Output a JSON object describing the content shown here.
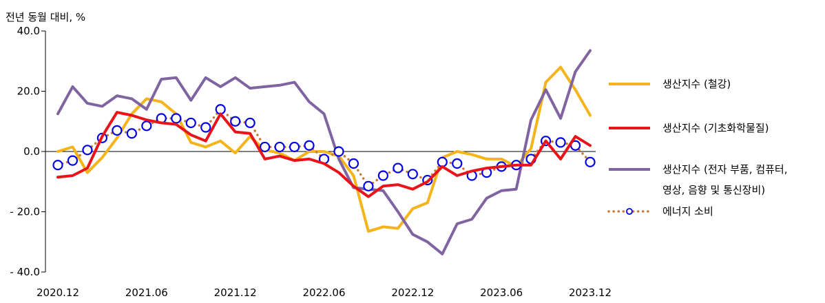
{
  "chart_data": {
    "type": "line",
    "unit_label": "전년 동월 대비, %",
    "ylim": [
      -40,
      40
    ],
    "y_ticks": [
      40,
      20,
      0,
      -20,
      -40
    ],
    "y_tick_labels": [
      "40.0",
      "20.0",
      "0.0",
      "- 20.0",
      "- 40.0"
    ],
    "x_tick_indices": [
      0,
      6,
      12,
      18,
      24,
      30,
      36
    ],
    "x_tick_labels": [
      "2020.12",
      "2021.06",
      "2021.12",
      "2022.06",
      "2022.12",
      "2023.06",
      "2023.12"
    ],
    "categories": [
      "2020.12",
      "2021.01",
      "2021.02",
      "2021.03",
      "2021.04",
      "2021.05",
      "2021.06",
      "2021.07",
      "2021.08",
      "2021.09",
      "2021.10",
      "2021.11",
      "2021.12",
      "2022.01",
      "2022.02",
      "2022.03",
      "2022.04",
      "2022.05",
      "2022.06",
      "2022.07",
      "2022.08",
      "2022.09",
      "2022.10",
      "2022.11",
      "2022.12",
      "2023.01",
      "2023.02",
      "2023.03",
      "2023.04",
      "2023.05",
      "2023.06",
      "2023.07",
      "2023.08",
      "2023.09",
      "2023.10",
      "2023.11",
      "2023.12"
    ],
    "series": [
      {
        "name": "생산지수 (철강)",
        "color": "#F4B41A",
        "style": "solid",
        "values": [
          0.0,
          1.5,
          -7.0,
          -2.0,
          4.5,
          12.5,
          17.5,
          16.5,
          12.5,
          3.0,
          1.5,
          3.5,
          -0.5,
          5.0,
          0.5,
          -0.5,
          -3.0,
          0.0,
          0.0,
          -1.5,
          -8.0,
          -26.5,
          -25.0,
          -25.5,
          -19.0,
          -17.0,
          -2.0,
          0.0,
          -1.0,
          -2.5,
          -2.5,
          -5.0,
          1.0,
          23.0,
          28.0,
          20.5,
          12.0
        ]
      },
      {
        "name": "생산지수 (기초화학물질)",
        "color": "#E8141A",
        "style": "solid",
        "values": [
          -8.5,
          -8.0,
          -5.5,
          5.0,
          13.0,
          12.0,
          10.5,
          9.5,
          9.0,
          5.5,
          3.5,
          12.5,
          6.5,
          6.0,
          -2.5,
          -1.5,
          -3.0,
          -2.5,
          -4.0,
          -7.0,
          -11.5,
          -15.0,
          -11.5,
          -11.0,
          -12.5,
          -10.0,
          -5.0,
          -8.0,
          -6.5,
          -5.5,
          -5.0,
          -4.5,
          -4.5,
          3.5,
          -2.5,
          5.0,
          2.0
        ]
      },
      {
        "name": "생산지수 (전자 부품, 컴퓨터, 영상, 음향 및 통신장비)",
        "color": "#8064A2",
        "style": "solid",
        "values": [
          12.5,
          21.5,
          16.0,
          15.0,
          18.5,
          17.5,
          14.0,
          24.0,
          24.5,
          17.0,
          24.5,
          21.5,
          24.5,
          21.0,
          21.5,
          22.0,
          23.0,
          16.5,
          12.5,
          -2.5,
          -12.0,
          -12.5,
          -13.0,
          -20.0,
          -27.5,
          -30.0,
          -34.0,
          -24.0,
          -22.5,
          -15.5,
          -13.0,
          -12.5,
          10.5,
          20.5,
          11.0,
          26.5,
          33.5
        ]
      },
      {
        "name": "에너지 소비",
        "color": "#C77B36",
        "marker_color": "#0000E6",
        "style": "dotted-marker",
        "values": [
          -4.5,
          -3.0,
          0.5,
          4.5,
          7.0,
          6.0,
          8.5,
          11.0,
          11.0,
          9.5,
          8.0,
          14.0,
          10.0,
          9.5,
          1.5,
          1.5,
          1.5,
          2.0,
          -2.5,
          0.0,
          -4.0,
          -11.5,
          -8.0,
          -5.5,
          -7.5,
          -9.5,
          -3.5,
          -4.0,
          -8.0,
          -7.0,
          -5.0,
          -4.5,
          -2.5,
          3.5,
          3.0,
          2.0,
          -3.5
        ]
      }
    ],
    "legend": [
      {
        "lines": [
          "생산지수 (철강)"
        ]
      },
      {
        "lines": [
          "생산지수 (기초화학물질)"
        ]
      },
      {
        "lines": [
          "생산지수 (전자 부품, 컴퓨터,",
          "영상, 음향 및 통신장비)"
        ]
      },
      {
        "lines": [
          "에너지 소비"
        ]
      }
    ]
  }
}
